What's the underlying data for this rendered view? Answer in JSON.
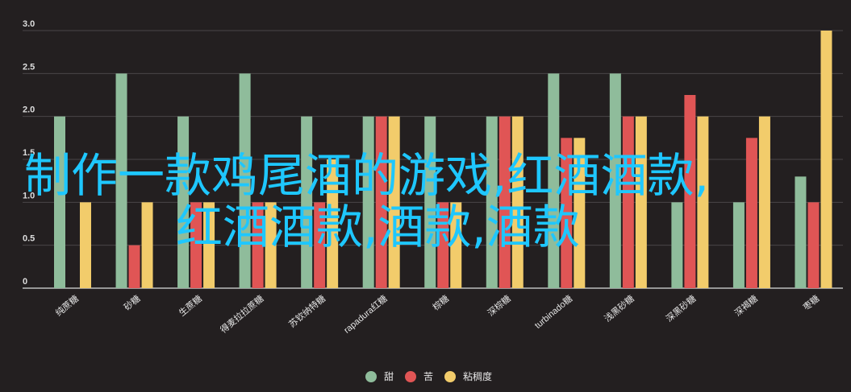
{
  "chart_data": {
    "type": "bar",
    "title": "",
    "xlabel": "",
    "ylabel": "",
    "ylim": [
      0,
      3.0
    ],
    "yticks": [
      "0",
      "0.5",
      "1.0",
      "1.5",
      "2.0",
      "2.5",
      "3.0"
    ],
    "categories": [
      "纯蔗糖",
      "砂糖",
      "生蔗糖",
      "得麦拉拉蔗糖",
      "苏钦纳特糖",
      "rapadura红糖",
      "棕糖",
      "深棕糖",
      "turbinado糖",
      "浅黑砂糖",
      "深黑砂糖",
      "深褐糖",
      "枣糖"
    ],
    "series": [
      {
        "name": "甜",
        "color": "#8fbc9b",
        "values": [
          2.0,
          2.5,
          2.0,
          2.5,
          2.0,
          2.0,
          2.0,
          2.0,
          2.5,
          2.5,
          1.0,
          1.0,
          1.3
        ]
      },
      {
        "name": "苦",
        "color": "#e05555",
        "values": [
          0,
          0.5,
          1.0,
          1.0,
          1.0,
          2.0,
          1.0,
          2.0,
          1.75,
          2.0,
          2.25,
          1.75,
          1.0
        ]
      },
      {
        "name": "粘稠度",
        "color": "#f2cc6b",
        "values": [
          1.0,
          1.0,
          1.0,
          1.0,
          1.5,
          2.0,
          1.0,
          2.0,
          1.75,
          2.0,
          2.0,
          2.0,
          3.0
        ]
      }
    ],
    "grid": true,
    "legend": "bottom"
  },
  "overlay_text": {
    "line1": "制作一款鸡尾酒的游戏,红酒酒款,",
    "line2": "红酒酒款,酒款,酒款"
  }
}
